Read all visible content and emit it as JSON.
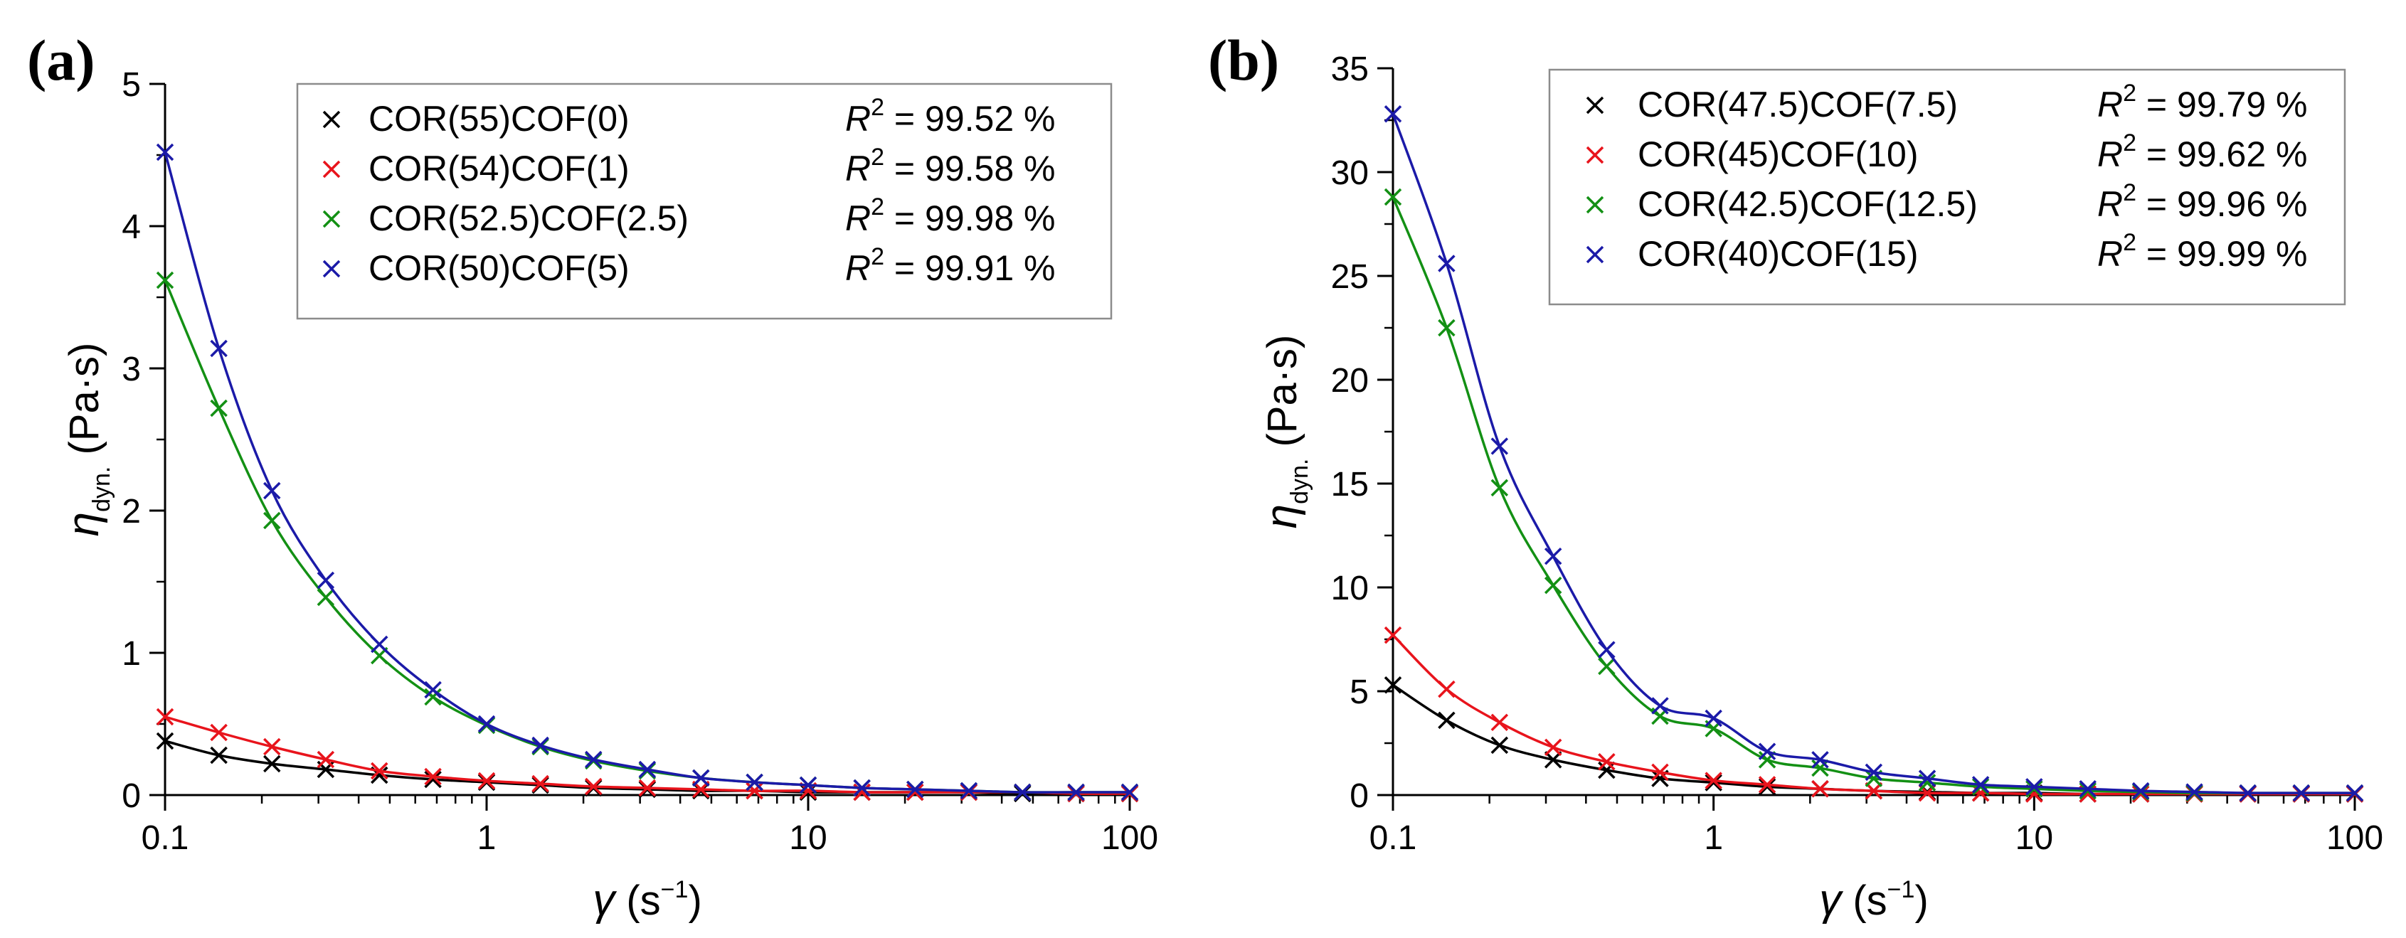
{
  "chart_data": [
    {
      "type": "scatter",
      "panel_label": "(a)",
      "x_scale": "log",
      "xlim": [
        0.1,
        100
      ],
      "ylim": [
        0,
        5
      ],
      "x_ticks": [
        0.1,
        1,
        10,
        100
      ],
      "x_tick_labels": [
        "0.1",
        "1",
        "10",
        "100"
      ],
      "y_ticks": [
        0,
        1,
        2,
        3,
        4,
        5
      ],
      "y_tick_labels": [
        "0",
        "1",
        "2",
        "3",
        "4",
        "5"
      ],
      "xlabel": {
        "symbol": "γ",
        "unit": " (s",
        "sup": "−1",
        "close": ")"
      },
      "ylabel": {
        "symbol": "η",
        "sub": "dyn.",
        "unit": " (Pa·s)"
      },
      "legend_position": "top-right",
      "r2_prefix": "R",
      "r2_sup": "2",
      "x": [
        0.1,
        0.147,
        0.215,
        0.316,
        0.464,
        0.681,
        1,
        1.47,
        2.15,
        3.16,
        4.64,
        6.81,
        10,
        14.7,
        21.5,
        31.6,
        46.4,
        68.1,
        100
      ],
      "series": [
        {
          "name": "COR(55)COF(0)",
          "r2": " = 99.52 %",
          "color": "#000000",
          "values": [
            0.38,
            0.28,
            0.22,
            0.18,
            0.14,
            0.11,
            0.09,
            0.07,
            0.05,
            0.04,
            0.03,
            0.03,
            0.02,
            0.02,
            0.02,
            0.02,
            0.01,
            0.01,
            0.01
          ]
        },
        {
          "name": "COR(54)COF(1)",
          "r2": " = 99.58 %",
          "color": "#e8141c",
          "values": [
            0.55,
            0.44,
            0.34,
            0.25,
            0.17,
            0.13,
            0.1,
            0.08,
            0.06,
            0.05,
            0.04,
            0.03,
            0.03,
            0.02,
            0.02,
            0.02,
            0.02,
            0.01,
            0.01
          ]
        },
        {
          "name": "COR(52.5)COF(2.5)",
          "r2": " = 99.98 %",
          "color": "#139014",
          "values": [
            3.62,
            2.72,
            1.93,
            1.39,
            0.98,
            0.69,
            0.49,
            0.34,
            0.24,
            0.17,
            0.12,
            0.09,
            0.07,
            0.05,
            0.04,
            0.03,
            0.02,
            0.02,
            0.02
          ]
        },
        {
          "name": "COR(50)COF(5)",
          "r2": " = 99.91 %",
          "color": "#1b1aa8",
          "values": [
            4.52,
            3.14,
            2.14,
            1.51,
            1.06,
            0.74,
            0.5,
            0.35,
            0.25,
            0.18,
            0.12,
            0.09,
            0.07,
            0.05,
            0.04,
            0.03,
            0.02,
            0.02,
            0.02
          ]
        }
      ]
    },
    {
      "type": "scatter",
      "panel_label": "(b)",
      "x_scale": "log",
      "xlim": [
        0.1,
        100
      ],
      "ylim": [
        0,
        35
      ],
      "x_ticks": [
        0.1,
        1,
        10,
        100
      ],
      "x_tick_labels": [
        "0.1",
        "1",
        "10",
        "100"
      ],
      "y_ticks": [
        0,
        5,
        10,
        15,
        20,
        25,
        30,
        35
      ],
      "y_tick_labels": [
        "0",
        "5",
        "10",
        "15",
        "20",
        "25",
        "30",
        "35"
      ],
      "xlabel": {
        "symbol": "γ",
        "unit": " (s",
        "sup": "−1",
        "close": ")"
      },
      "ylabel": {
        "symbol": "η",
        "sub": "dyn.",
        "unit": " (Pa·s)"
      },
      "legend_position": "top-right",
      "r2_prefix": "R",
      "r2_sup": "2",
      "x": [
        0.1,
        0.147,
        0.215,
        0.316,
        0.464,
        0.681,
        1,
        1.47,
        2.15,
        3.16,
        4.64,
        6.81,
        10,
        14.7,
        21.5,
        31.6,
        46.4,
        68.1,
        100
      ],
      "series": [
        {
          "name": "COR(47.5)COF(7.5)",
          "r2": " = 99.79 %",
          "color": "#000000",
          "values": [
            5.3,
            3.6,
            2.4,
            1.7,
            1.2,
            0.8,
            0.6,
            0.4,
            0.3,
            0.2,
            0.15,
            0.1,
            0.1,
            0.05,
            0.05,
            0.05,
            0.05,
            0.05,
            0.05
          ]
        },
        {
          "name": "COR(45)COF(10)",
          "r2": " = 99.62 %",
          "color": "#e8141c",
          "values": [
            7.7,
            5.1,
            3.5,
            2.3,
            1.6,
            1.1,
            0.7,
            0.5,
            0.3,
            0.2,
            0.1,
            0.1,
            0.05,
            0.05,
            0.05,
            0.05,
            0.05,
            0.05,
            0.05
          ]
        },
        {
          "name": "COR(42.5)COF(12.5)",
          "r2": " = 99.96 %",
          "color": "#139014",
          "values": [
            28.8,
            22.5,
            14.8,
            10.1,
            6.2,
            3.8,
            3.2,
            1.7,
            1.3,
            0.8,
            0.6,
            0.4,
            0.3,
            0.2,
            0.15,
            0.1,
            0.1,
            0.1,
            0.1
          ]
        },
        {
          "name": "COR(40)COF(15)",
          "r2": " = 99.99 %",
          "color": "#1b1aa8",
          "values": [
            32.8,
            25.6,
            16.8,
            11.5,
            7.0,
            4.3,
            3.7,
            2.1,
            1.7,
            1.1,
            0.8,
            0.5,
            0.4,
            0.3,
            0.2,
            0.15,
            0.1,
            0.1,
            0.1
          ]
        }
      ]
    }
  ]
}
